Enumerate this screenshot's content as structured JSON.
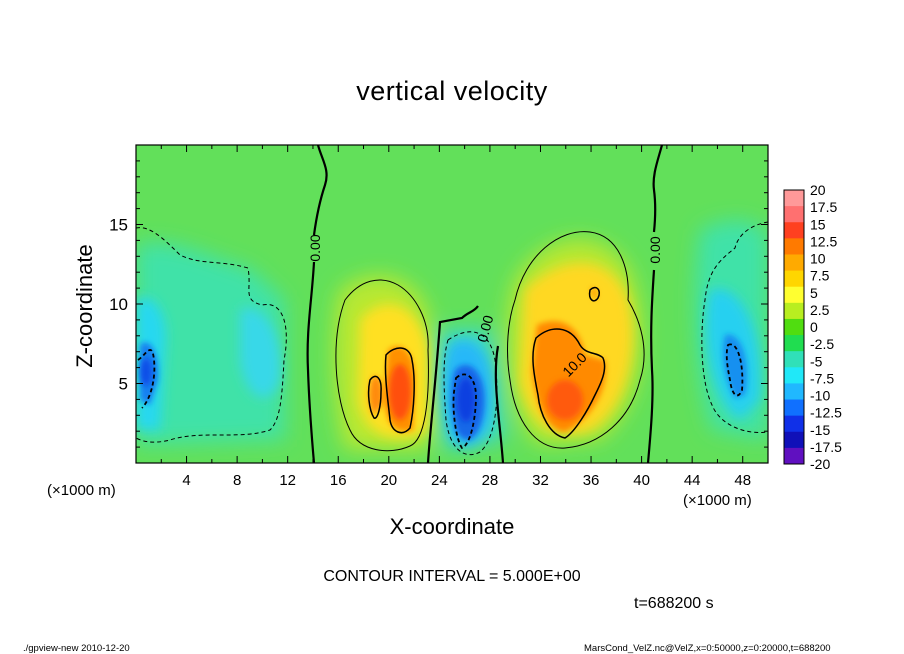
{
  "chart_data": {
    "type": "heatmap",
    "title": "vertical velocity",
    "xlabel": "X-coordinate",
    "ylabel": "Z-coordinate",
    "x_unit": "(×1000 m)",
    "xlim": [
      0,
      50
    ],
    "ylim": [
      0,
      20
    ],
    "x_ticks": [
      4,
      8,
      12,
      16,
      20,
      24,
      28,
      32,
      36,
      40,
      44,
      48
    ],
    "y_ticks": [
      5,
      10,
      15
    ],
    "contour_interval": "CONTOUR INTERVAL = 5.000E+00",
    "contour_labels": [
      "0.00",
      "0.00",
      "0.00",
      "10.0"
    ],
    "colorbar": {
      "levels": [
        "20",
        "17.5",
        "15",
        "12.5",
        "10",
        "7.5",
        "5",
        "2.5",
        "0",
        "-2.5",
        "-5",
        "-7.5",
        "-10",
        "-12.5",
        "-15",
        "-17.5",
        "-20"
      ],
      "colors": [
        "#ff9999",
        "#ff7070",
        "#ff4020",
        "#ff7a00",
        "#ffaa00",
        "#ffd600",
        "#ffff30",
        "#b8ee20",
        "#50dd10",
        "#20dd50",
        "#30e0b8",
        "#20e8f8",
        "#20b8ff",
        "#1070ff",
        "#1030e8",
        "#1010b8",
        "#6010c0"
      ]
    },
    "fields": [
      {
        "name": "updraft",
        "x": 20.3,
        "z": 4.5,
        "peak_w": 12.5
      },
      {
        "name": "updraft",
        "x": 33.5,
        "z": 5.5,
        "peak_w": 12.5
      },
      {
        "name": "downdraft",
        "x": 25.6,
        "z": 4.2,
        "peak_w": -12.5
      },
      {
        "name": "downdraft",
        "x": 1.0,
        "z": 5.0,
        "peak_w": -10.5
      },
      {
        "name": "downdraft",
        "x": 47.0,
        "z": 5.3,
        "peak_w": -11
      }
    ]
  },
  "time_label": "t=688200 s",
  "footer": {
    "left": "./gpview-new  2010-12-20",
    "right": "MarsCond_VelZ.nc@VelZ,x=0:50000,z=0:20000,t=688200"
  }
}
